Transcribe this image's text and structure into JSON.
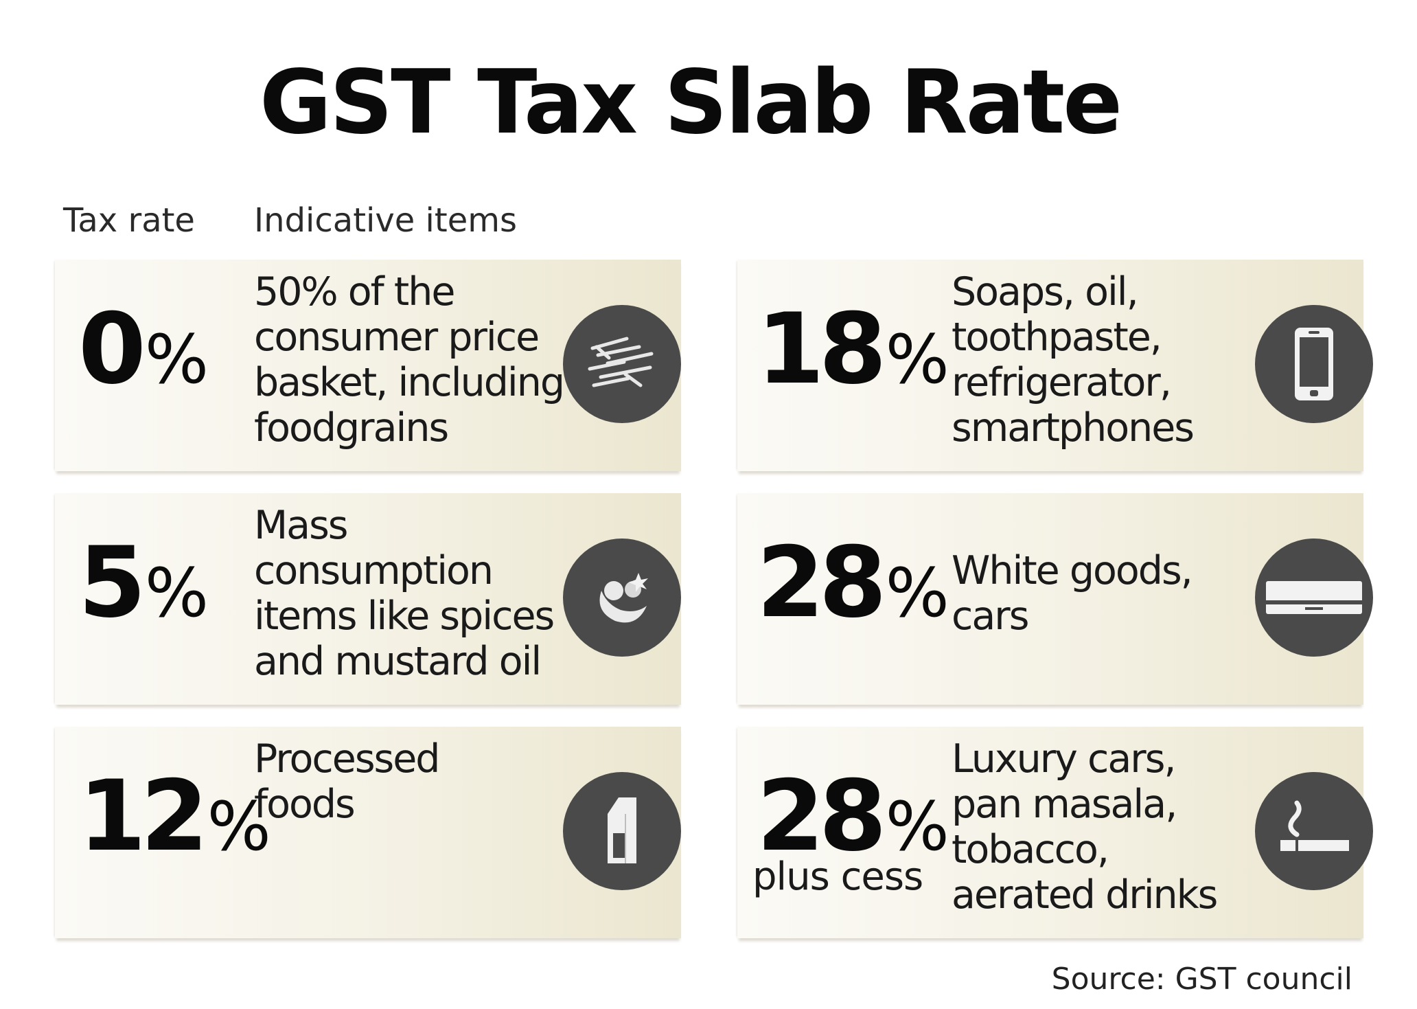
{
  "title": "GST Tax Slab Rate",
  "headers": {
    "rate": "Tax rate",
    "items": "Indicative items"
  },
  "slabs": [
    {
      "rate": "0",
      "unit": "%",
      "sub": "",
      "lines": [
        "50% of the",
        "consumer price",
        "basket, including",
        "foodgrains"
      ],
      "icon": "grain-icon"
    },
    {
      "rate": "5",
      "unit": "%",
      "sub": "",
      "lines": [
        "Mass",
        "consumption",
        "items like spices",
        "and mustard oil"
      ],
      "icon": "spices-icon"
    },
    {
      "rate": "12",
      "unit": "%",
      "sub": "",
      "lines": [
        "Processed",
        "foods"
      ],
      "icon": "milk-carton-icon"
    },
    {
      "rate": "18",
      "unit": "%",
      "sub": "",
      "lines": [
        "Soaps, oil,",
        "toothpaste,",
        "refrigerator,",
        "smartphones"
      ],
      "icon": "smartphone-icon"
    },
    {
      "rate": "28",
      "unit": "%",
      "sub": "",
      "lines": [
        "White goods,",
        "cars"
      ],
      "icon": "air-conditioner-icon"
    },
    {
      "rate": "28",
      "unit": "%",
      "sub": "plus cess",
      "lines": [
        "Luxury cars,",
        "pan masala,",
        "tobacco,",
        "aerated drinks"
      ],
      "icon": "cigarette-icon"
    }
  ],
  "source": "Source: GST council",
  "colors": {
    "icon_bg": "#4a4a4a",
    "card_light": "#fbfaf6",
    "card_dark": "#ebe6cf"
  }
}
